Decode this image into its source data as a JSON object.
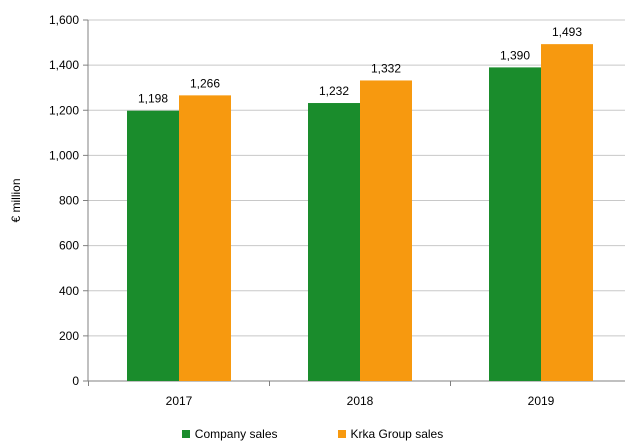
{
  "chart_data": {
    "type": "bar",
    "title": "",
    "ylabel": "€ million",
    "xlabel": "",
    "categories": [
      "2017",
      "2018",
      "2019"
    ],
    "series": [
      {
        "name": "Company sales",
        "values": [
          1198,
          1232,
          1390
        ],
        "color": "#1a8c2c"
      },
      {
        "name": "Krka Group sales",
        "values": [
          1266,
          1332,
          1493
        ],
        "color": "#f7990f"
      }
    ],
    "data_labels": [
      [
        "1,198",
        "1,232",
        "1,390"
      ],
      [
        "1,266",
        "1,332",
        "1,493"
      ]
    ],
    "ylim": [
      0,
      1600
    ],
    "yticks": [
      "0",
      "200",
      "400",
      "600",
      "800",
      "1,000",
      "1,200",
      "1,400",
      "1,600"
    ],
    "grid": true,
    "legend_position": "bottom"
  }
}
